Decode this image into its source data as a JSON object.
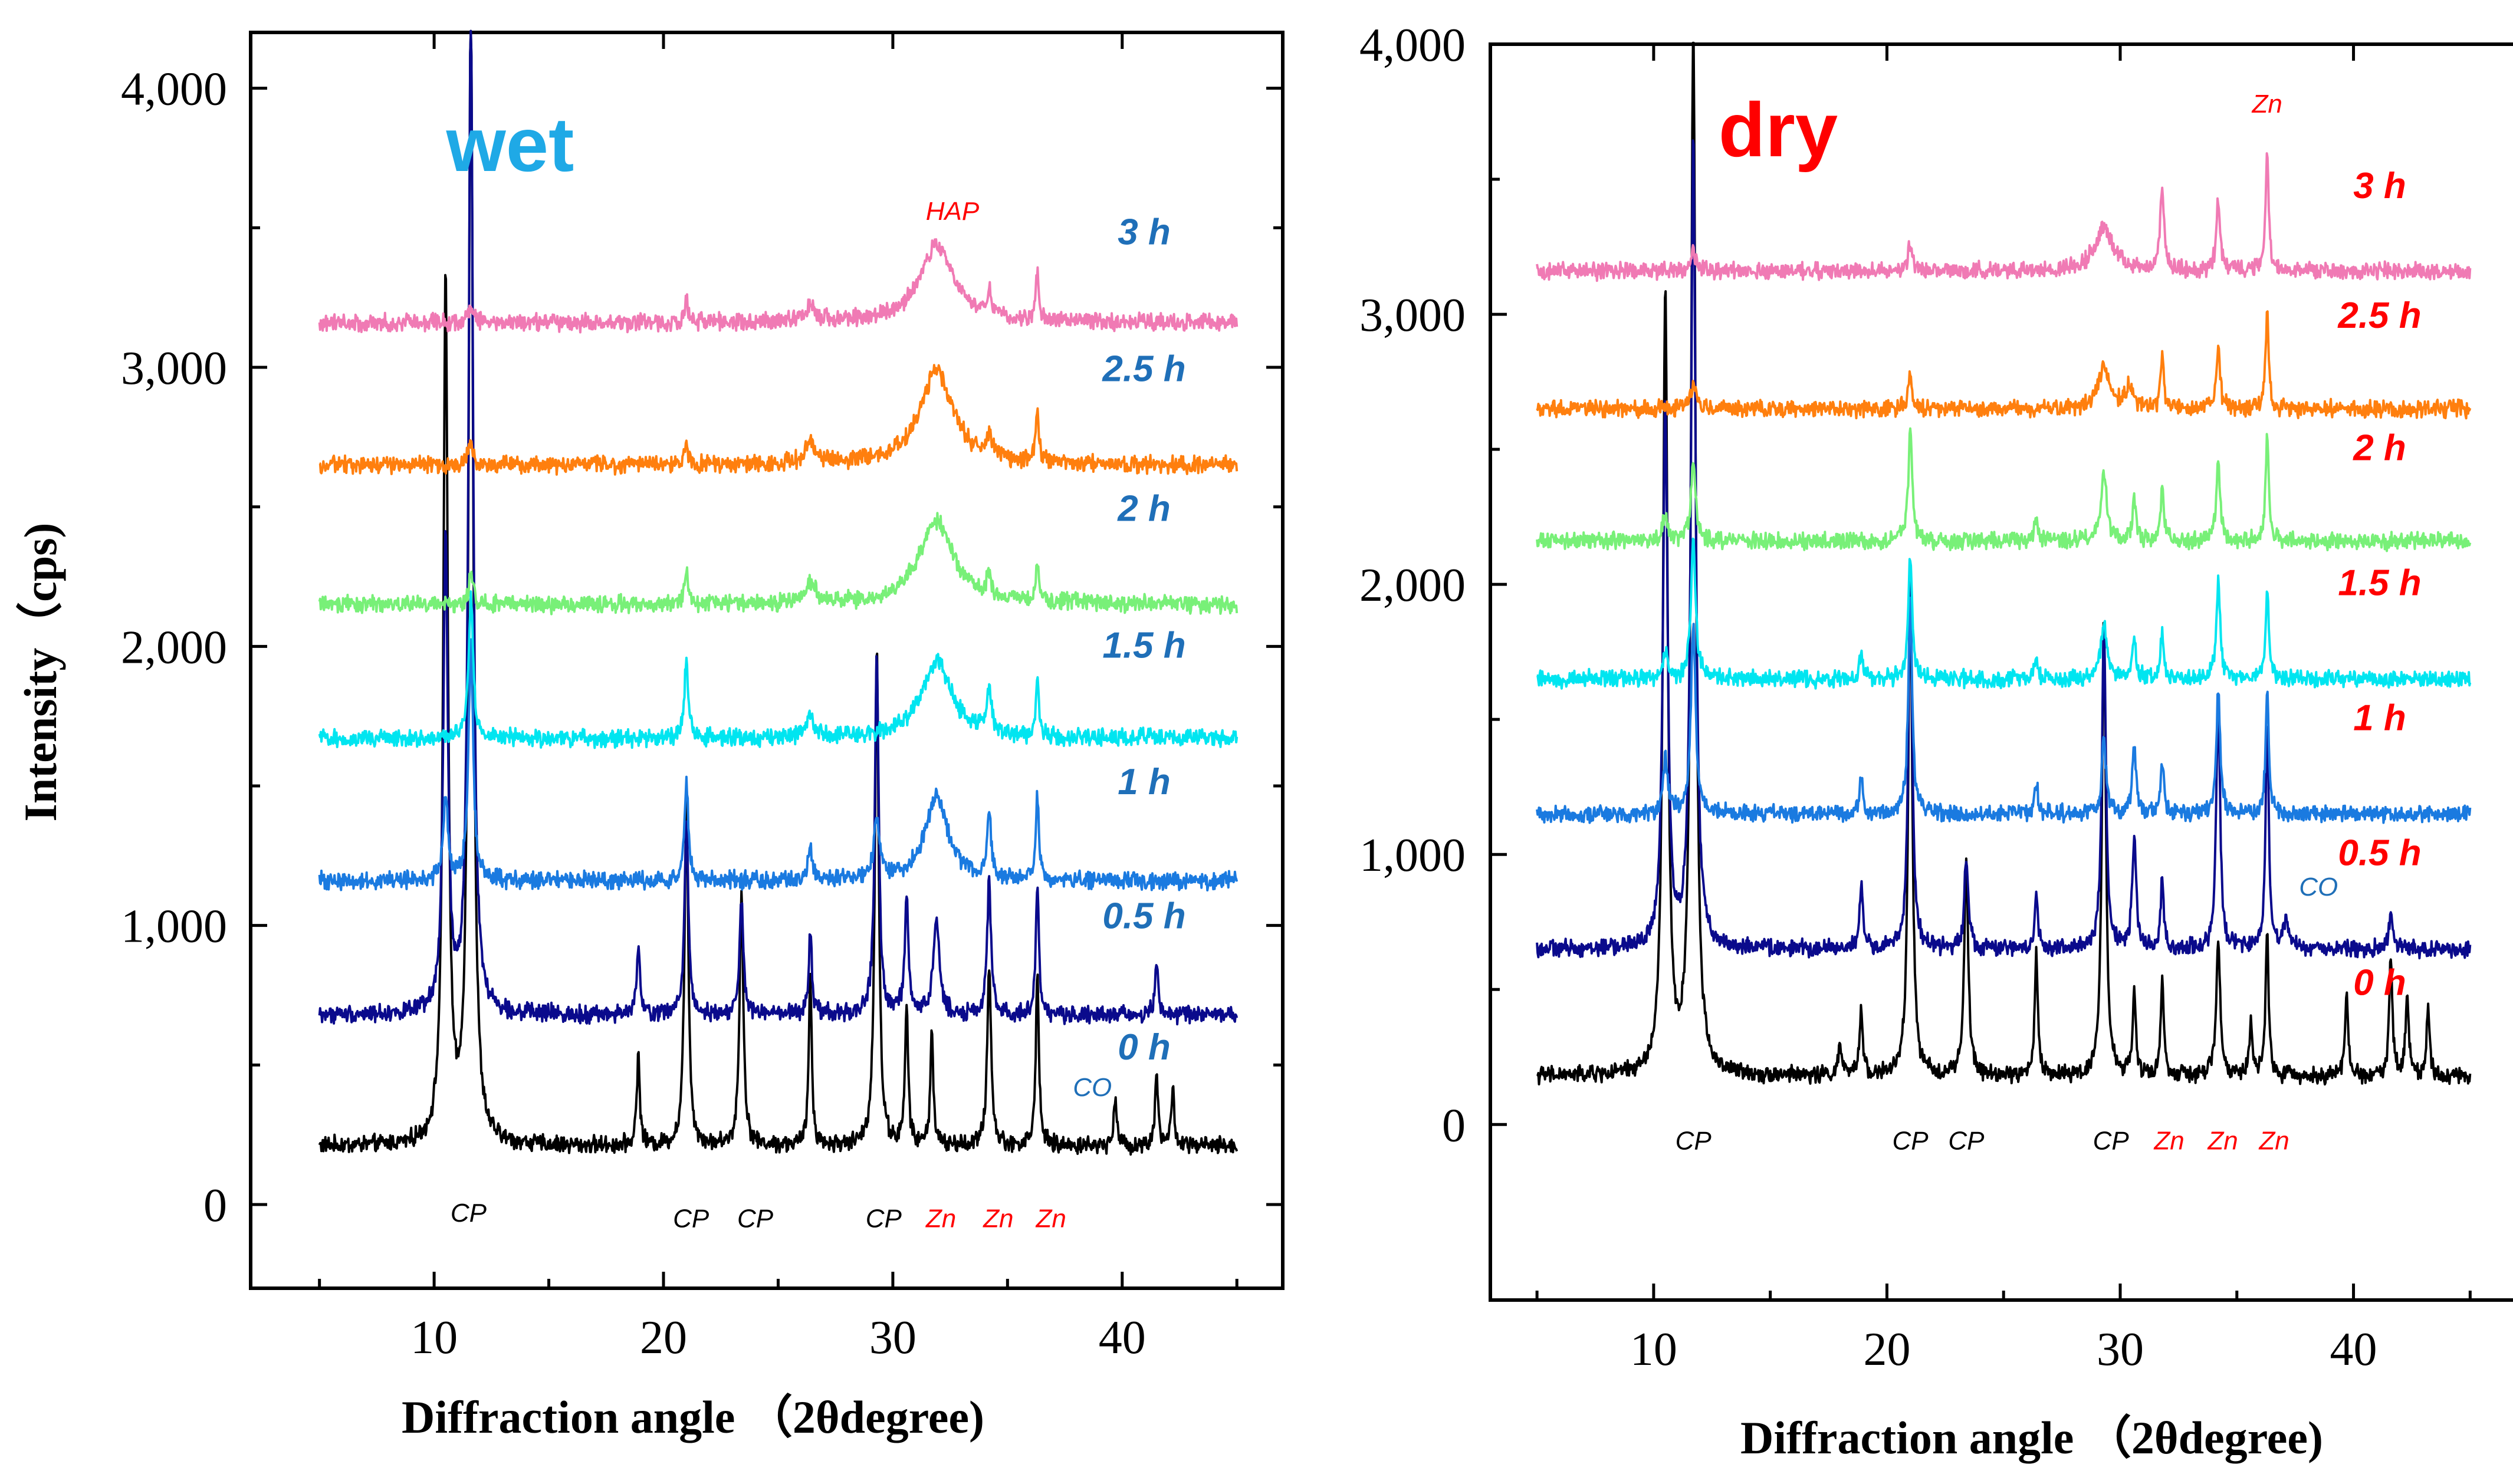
{
  "chart_data": [
    {
      "type": "line",
      "title": "wet",
      "title_color": "#1fa9e6",
      "xlabel": "Diffraction angle （2θdegree)",
      "ylabel": "Intensity（cps)",
      "xlim": [
        2,
        47
      ],
      "ylim": [
        -300,
        4200
      ],
      "xticks": [
        10,
        20,
        30,
        40
      ],
      "yticks": [
        0,
        1000,
        2000,
        3000,
        4000
      ],
      "ytick_labels": [
        "0",
        "1,000",
        "2,000",
        "3,000",
        "4,000"
      ],
      "x_range": [
        5,
        45
      ],
      "series": [
        {
          "name": "0 h",
          "color": "#000000",
          "label_color": "#1f6fb8",
          "baseline": 210,
          "label_y": 520,
          "peaks": [
            [
              10.5,
              3100,
              0.12
            ],
            [
              11.6,
              4100,
              0.12
            ],
            [
              18.9,
              320,
              0.08
            ],
            [
              21.0,
              1250,
              0.1
            ],
            [
              23.4,
              900,
              0.1
            ],
            [
              26.4,
              600,
              0.08
            ],
            [
              29.3,
              1800,
              0.1
            ],
            [
              30.6,
              500,
              0.08
            ],
            [
              31.7,
              400,
              0.08
            ],
            [
              34.2,
              650,
              0.1
            ],
            [
              36.3,
              620,
              0.08
            ],
            [
              39.7,
              180,
              0.08
            ],
            [
              41.5,
              260,
              0.08
            ],
            [
              42.2,
              200,
              0.08
            ]
          ]
        },
        {
          "name": "0.5 h",
          "color": "#0a0a8c",
          "label_color": "#1f6fb8",
          "baseline": 680,
          "label_y": 990,
          "peaks": [
            [
              10.5,
              1700,
              0.12
            ],
            [
              11.6,
              3600,
              0.12
            ],
            [
              18.9,
              250,
              0.08
            ],
            [
              21.0,
              700,
              0.1
            ],
            [
              23.4,
              400,
              0.1
            ],
            [
              26.4,
              300,
              0.08
            ],
            [
              29.3,
              1300,
              0.1
            ],
            [
              30.6,
              400,
              0.1
            ],
            [
              31.9,
              350,
              0.15
            ],
            [
              34.2,
              480,
              0.1
            ],
            [
              36.3,
              450,
              0.08
            ],
            [
              41.5,
              200,
              0.08
            ]
          ]
        },
        {
          "name": "1 h",
          "color": "#1a7ae0",
          "label_color": "#1f6fb8",
          "baseline": 1160,
          "label_y": 1470,
          "peaks": [
            [
              10.5,
              300,
              0.12
            ],
            [
              11.6,
              850,
              0.12
            ],
            [
              21.0,
              350,
              0.1
            ],
            [
              26.4,
              120,
              0.1
            ],
            [
              29.3,
              200,
              0.15
            ],
            [
              31.9,
              300,
              0.6
            ],
            [
              34.2,
              250,
              0.1
            ],
            [
              36.3,
              300,
              0.08
            ]
          ]
        },
        {
          "name": "1.5 h",
          "color": "#00e5f0",
          "label_color": "#1f6fb8",
          "baseline": 1670,
          "label_y": 1960,
          "peaks": [
            [
              11.6,
              500,
              0.12
            ],
            [
              21.0,
              280,
              0.1
            ],
            [
              26.4,
              80,
              0.2
            ],
            [
              31.9,
              280,
              0.8
            ],
            [
              34.2,
              150,
              0.12
            ],
            [
              36.3,
              200,
              0.08
            ]
          ]
        },
        {
          "name": "2 h",
          "color": "#78f078",
          "label_color": "#1f6fb8",
          "baseline": 2150,
          "label_y": 2450,
          "peaks": [
            [
              11.6,
              100,
              0.12
            ],
            [
              21.0,
              120,
              0.1
            ],
            [
              26.4,
              70,
              0.3
            ],
            [
              31.9,
              300,
              0.9
            ],
            [
              34.2,
              80,
              0.12
            ],
            [
              36.3,
              150,
              0.08
            ]
          ]
        },
        {
          "name": "2.5 h",
          "color": "#ff7f0e",
          "label_color": "#1f6fb8",
          "baseline": 2650,
          "label_y": 2950,
          "peaks": [
            [
              11.6,
              80,
              0.12
            ],
            [
              21.0,
              60,
              0.1
            ],
            [
              26.4,
              70,
              0.3
            ],
            [
              31.9,
              330,
              0.9
            ],
            [
              34.2,
              80,
              0.12
            ],
            [
              36.3,
              180,
              0.08
            ]
          ]
        },
        {
          "name": "3 h",
          "color": "#f07ab4",
          "label_color": "#1f6fb8",
          "baseline": 3160,
          "label_y": 3440,
          "peaks": [
            [
              11.6,
              60,
              0.12
            ],
            [
              21.0,
              80,
              0.1
            ],
            [
              26.4,
              50,
              0.3
            ],
            [
              31.9,
              280,
              0.9
            ],
            [
              34.2,
              80,
              0.12
            ],
            [
              36.3,
              170,
              0.08
            ]
          ]
        }
      ],
      "annotations": [
        {
          "text": "HAP",
          "x": 32.6,
          "y": 3560,
          "color": "#ff0000"
        },
        {
          "text": "CO",
          "x": 38.7,
          "y": 420,
          "color": "#1f6fb8"
        },
        {
          "text": "CP",
          "x": 11.5,
          "y": -30,
          "color": "#000000"
        },
        {
          "text": "CP",
          "x": 21.2,
          "y": -50,
          "color": "#000000"
        },
        {
          "text": "CP",
          "x": 24.0,
          "y": -50,
          "color": "#000000"
        },
        {
          "text": "CP",
          "x": 29.6,
          "y": -50,
          "color": "#000000"
        },
        {
          "text": "Zn",
          "x": 32.1,
          "y": -50,
          "color": "#ff0000"
        },
        {
          "text": "Zn",
          "x": 34.6,
          "y": -50,
          "color": "#ff0000"
        },
        {
          "text": "Zn",
          "x": 36.9,
          "y": -50,
          "color": "#ff0000"
        }
      ]
    },
    {
      "type": "line",
      "title": "dry",
      "title_color": "#ff0000",
      "xlabel": "Diffraction angle （2θdegree)",
      "ylabel": "",
      "xlim": [
        3,
        48
      ],
      "ylim": [
        -650,
        4000
      ],
      "xticks": [
        10,
        20,
        30,
        40
      ],
      "yticks": [
        0,
        1000,
        2000,
        3000,
        4000
      ],
      "ytick_labels": [
        "0",
        "1,000",
        "2,000",
        "3,000",
        "4,000"
      ],
      "x_range": [
        5,
        45
      ],
      "series": [
        {
          "name": "0 h",
          "color": "#000000",
          "label_color": "#ff0000",
          "baseline": 180,
          "label_y": 480,
          "peaks": [
            [
              10.5,
              2900,
              0.12
            ],
            [
              11.7,
              3900,
              0.12
            ],
            [
              18.0,
              100,
              0.1
            ],
            [
              18.9,
              250,
              0.08
            ],
            [
              21.0,
              1900,
              0.1
            ],
            [
              23.4,
              800,
              0.1
            ],
            [
              26.4,
              450,
              0.08
            ],
            [
              29.3,
              1700,
              0.1
            ],
            [
              30.6,
              300,
              0.08
            ],
            [
              31.8,
              350,
              0.08
            ],
            [
              34.2,
              500,
              0.1
            ],
            [
              35.6,
              200,
              0.08
            ],
            [
              36.3,
              520,
              0.08
            ],
            [
              39.7,
              300,
              0.08
            ],
            [
              41.6,
              450,
              0.08
            ],
            [
              42.3,
              300,
              0.08
            ],
            [
              43.2,
              250,
              0.08
            ]
          ]
        },
        {
          "name": "0.5 h",
          "color": "#0a0a8c",
          "label_color": "#ff0000",
          "baseline": 650,
          "label_y": 960,
          "peaks": [
            [
              10.5,
              2000,
              0.12
            ],
            [
              11.7,
              3000,
              0.12
            ],
            [
              18.9,
              250,
              0.08
            ],
            [
              21.0,
              1400,
              0.1
            ],
            [
              23.4,
              350,
              0.1
            ],
            [
              26.4,
              200,
              0.08
            ],
            [
              29.3,
              1200,
              0.1
            ],
            [
              30.6,
              400,
              0.1
            ],
            [
              31.8,
              250,
              0.08
            ],
            [
              34.2,
              900,
              0.1
            ],
            [
              36.3,
              850,
              0.08
            ],
            [
              37.1,
              100,
              0.15
            ],
            [
              41.6,
              120,
              0.1
            ]
          ]
        },
        {
          "name": "1 h",
          "color": "#1a7ae0",
          "label_color": "#ff0000",
          "baseline": 1150,
          "label_y": 1460,
          "peaks": [
            [
              10.5,
              200,
              0.12
            ],
            [
              11.7,
              700,
              0.12
            ],
            [
              18.9,
              150,
              0.08
            ],
            [
              21.0,
              800,
              0.1
            ],
            [
              26.4,
              120,
              0.08
            ],
            [
              29.3,
              300,
              0.1
            ],
            [
              30.6,
              250,
              0.1
            ],
            [
              31.8,
              200,
              0.08
            ],
            [
              34.2,
              450,
              0.1
            ],
            [
              36.3,
              450,
              0.08
            ]
          ]
        },
        {
          "name": "1.5 h",
          "color": "#00e5f0",
          "label_color": "#ff0000",
          "baseline": 1650,
          "label_y": 1960,
          "peaks": [
            [
              10.5,
              100,
              0.12
            ],
            [
              11.7,
              500,
              0.12
            ],
            [
              18.9,
              100,
              0.08
            ],
            [
              21.0,
              450,
              0.1
            ],
            [
              26.4,
              80,
              0.1
            ],
            [
              29.3,
              200,
              0.15
            ],
            [
              30.6,
              150,
              0.1
            ],
            [
              31.8,
              180,
              0.08
            ],
            [
              34.2,
              350,
              0.1
            ],
            [
              36.3,
              350,
              0.08
            ]
          ]
        },
        {
          "name": "2 h",
          "color": "#78f078",
          "label_color": "#ff0000",
          "baseline": 2160,
          "label_y": 2460,
          "peaks": [
            [
              10.5,
              100,
              0.12
            ],
            [
              11.7,
              300,
              0.12
            ],
            [
              21.0,
              400,
              0.1
            ],
            [
              26.4,
              80,
              0.1
            ],
            [
              29.3,
              250,
              0.15
            ],
            [
              30.6,
              150,
              0.1
            ],
            [
              31.8,
              200,
              0.08
            ],
            [
              34.2,
              300,
              0.1
            ],
            [
              36.3,
              400,
              0.08
            ]
          ]
        },
        {
          "name": "2.5 h",
          "color": "#ff7f0e",
          "label_color": "#ff0000",
          "baseline": 2650,
          "label_y": 2950,
          "peaks": [
            [
              11.7,
              100,
              0.12
            ],
            [
              21.0,
              120,
              0.1
            ],
            [
              29.3,
              150,
              0.3
            ],
            [
              30.4,
              80,
              0.2
            ],
            [
              31.8,
              200,
              0.08
            ],
            [
              34.2,
              200,
              0.1
            ],
            [
              36.3,
              350,
              0.08
            ]
          ]
        },
        {
          "name": "3 h",
          "color": "#f07ab4",
          "label_color": "#ff0000",
          "baseline": 3160,
          "label_y": 3430,
          "peaks": [
            [
              11.7,
              80,
              0.12
            ],
            [
              21.0,
              100,
              0.1
            ],
            [
              29.3,
              150,
              0.5
            ],
            [
              31.8,
              300,
              0.1
            ],
            [
              34.2,
              250,
              0.1
            ],
            [
              36.3,
              450,
              0.08
            ]
          ]
        }
      ],
      "annotations": [
        {
          "text": "Zn",
          "x": 36.3,
          "y": 3780,
          "color": "#ff0000"
        },
        {
          "text": "CO",
          "x": 38.5,
          "y": 880,
          "color": "#1f6fb8"
        },
        {
          "text": "CP",
          "x": 11.7,
          "y": -60,
          "color": "#000000"
        },
        {
          "text": "CP",
          "x": 21.0,
          "y": -60,
          "color": "#000000"
        },
        {
          "text": "CP",
          "x": 23.4,
          "y": -60,
          "color": "#000000"
        },
        {
          "text": "CP",
          "x": 29.6,
          "y": -60,
          "color": "#000000"
        },
        {
          "text": "Zn",
          "x": 32.1,
          "y": -60,
          "color": "#ff0000"
        },
        {
          "text": "Zn",
          "x": 34.4,
          "y": -60,
          "color": "#ff0000"
        },
        {
          "text": "Zn",
          "x": 36.6,
          "y": -60,
          "color": "#ff0000"
        }
      ]
    }
  ]
}
